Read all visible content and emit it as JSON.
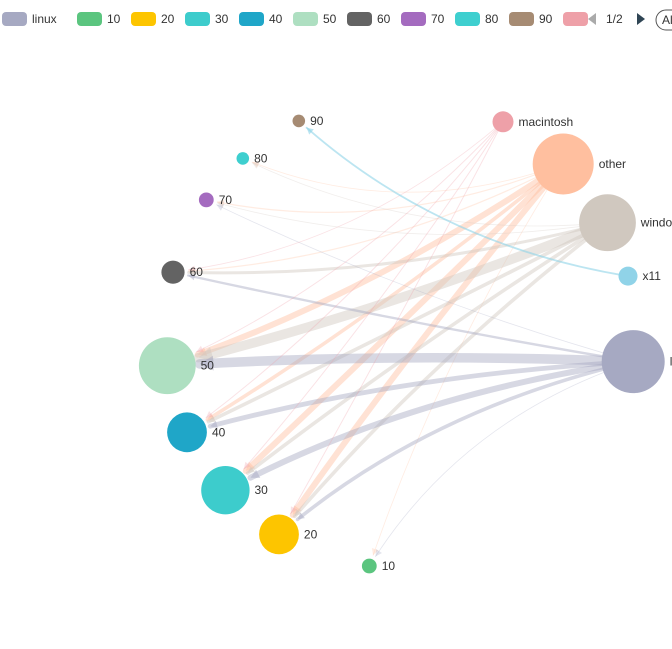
{
  "chart_data": {
    "type": "graph",
    "layout": "circular",
    "title": "",
    "legend": {
      "placement": "top",
      "items": [
        {
          "name": "linux",
          "color": "#a6a9c2"
        },
        {
          "name": "10",
          "color": "#5bc57f"
        },
        {
          "name": "20",
          "color": "#fdc500"
        },
        {
          "name": "30",
          "color": "#3dcccc"
        },
        {
          "name": "40",
          "color": "#1fa6c8"
        },
        {
          "name": "50",
          "color": "#aedfc1"
        },
        {
          "name": "60",
          "color": "#636363"
        },
        {
          "name": "70",
          "color": "#a46bbf"
        },
        {
          "name": "80",
          "color": "#3ecfcf"
        },
        {
          "name": "90",
          "color": "#a68b73"
        },
        {
          "name": "",
          "color": "#eea0a8"
        }
      ],
      "page_text": "1/2",
      "all_button": "Al"
    },
    "nodes": [
      {
        "name": "90",
        "color": "#a68b73",
        "size": 6
      },
      {
        "name": "80",
        "color": "#3ecfcf",
        "size": 6
      },
      {
        "name": "70",
        "color": "#a46bbf",
        "size": 7
      },
      {
        "name": "60",
        "color": "#636363",
        "size": 11
      },
      {
        "name": "50",
        "color": "#aedfc1",
        "size": 27
      },
      {
        "name": "40",
        "color": "#1fa6c8",
        "size": 19
      },
      {
        "name": "30",
        "color": "#3dcccc",
        "size": 23
      },
      {
        "name": "20",
        "color": "#fdc500",
        "size": 19
      },
      {
        "name": "10",
        "color": "#5bc57f",
        "size": 7
      },
      {
        "name": "macintosh",
        "color": "#eea0a8",
        "size": 10
      },
      {
        "name": "other",
        "color": "#ffbf9f",
        "size": 29
      },
      {
        "name": "windows",
        "color": "#d0c8bf",
        "size": 27
      },
      {
        "name": "x11",
        "color": "#90d3e8",
        "size": 9
      },
      {
        "name": "linux",
        "color": "#a6a9c2",
        "size": 30
      }
    ],
    "links": [
      {
        "source": "other",
        "target": "50",
        "weight": 5
      },
      {
        "source": "other",
        "target": "40",
        "weight": 3
      },
      {
        "source": "other",
        "target": "30",
        "weight": 5
      },
      {
        "source": "other",
        "target": "20",
        "weight": 5
      },
      {
        "source": "other",
        "target": "60",
        "weight": 1
      },
      {
        "source": "other",
        "target": "70",
        "weight": 1
      },
      {
        "source": "other",
        "target": "80",
        "weight": 0.5
      },
      {
        "source": "other",
        "target": "10",
        "weight": 0.5
      },
      {
        "source": "windows",
        "target": "50",
        "weight": 8
      },
      {
        "source": "windows",
        "target": "40",
        "weight": 3
      },
      {
        "source": "windows",
        "target": "30",
        "weight": 3
      },
      {
        "source": "windows",
        "target": "20",
        "weight": 3
      },
      {
        "source": "windows",
        "target": "60",
        "weight": 2.5
      },
      {
        "source": "windows",
        "target": "70",
        "weight": 0.5
      },
      {
        "source": "windows",
        "target": "80",
        "weight": 0.5
      },
      {
        "source": "linux",
        "target": "50",
        "weight": 8
      },
      {
        "source": "linux",
        "target": "40",
        "weight": 4
      },
      {
        "source": "linux",
        "target": "30",
        "weight": 5
      },
      {
        "source": "linux",
        "target": "20",
        "weight": 3
      },
      {
        "source": "linux",
        "target": "60",
        "weight": 2
      },
      {
        "source": "linux",
        "target": "70",
        "weight": 0.5
      },
      {
        "source": "linux",
        "target": "10",
        "weight": 0.5
      },
      {
        "source": "macintosh",
        "target": "50",
        "weight": 0.8
      },
      {
        "source": "macintosh",
        "target": "40",
        "weight": 0.8
      },
      {
        "source": "macintosh",
        "target": "30",
        "weight": 0.8
      },
      {
        "source": "macintosh",
        "target": "20",
        "weight": 0.8
      },
      {
        "source": "macintosh",
        "target": "60",
        "weight": 0.5
      },
      {
        "source": "x11",
        "target": "90",
        "weight": 1.5
      }
    ]
  }
}
